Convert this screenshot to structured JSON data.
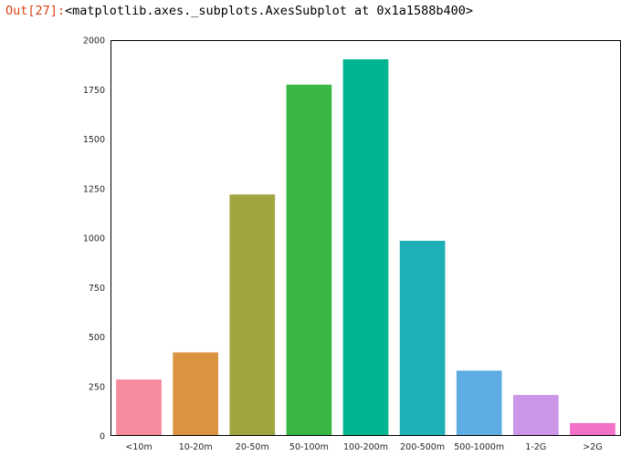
{
  "cell": {
    "prompt": "Out[27]:",
    "output_text": "<matplotlib.axes._subplots.AxesSubplot at 0x1a1588b400>"
  },
  "chart_data": {
    "type": "bar",
    "title": "",
    "xlabel": "",
    "ylabel": "",
    "categories": [
      "<10m",
      "10-20m",
      "20-50m",
      "50-100m",
      "100-200m",
      "200-500m",
      "500-1000m",
      "1-2G",
      ">2G"
    ],
    "values": [
      285,
      422,
      1220,
      1775,
      1903,
      986,
      330,
      207,
      65
    ],
    "colors": [
      "#f58b9d",
      "#db9342",
      "#a2a43f",
      "#38b745",
      "#00b391",
      "#1eb0b7",
      "#5dade2",
      "#cc96e8",
      "#f270c8"
    ],
    "ylim": [
      0,
      2000
    ],
    "yticks": [
      0,
      250,
      500,
      750,
      1000,
      1250,
      1500,
      1750,
      2000
    ],
    "grid": false,
    "legend": "none"
  }
}
